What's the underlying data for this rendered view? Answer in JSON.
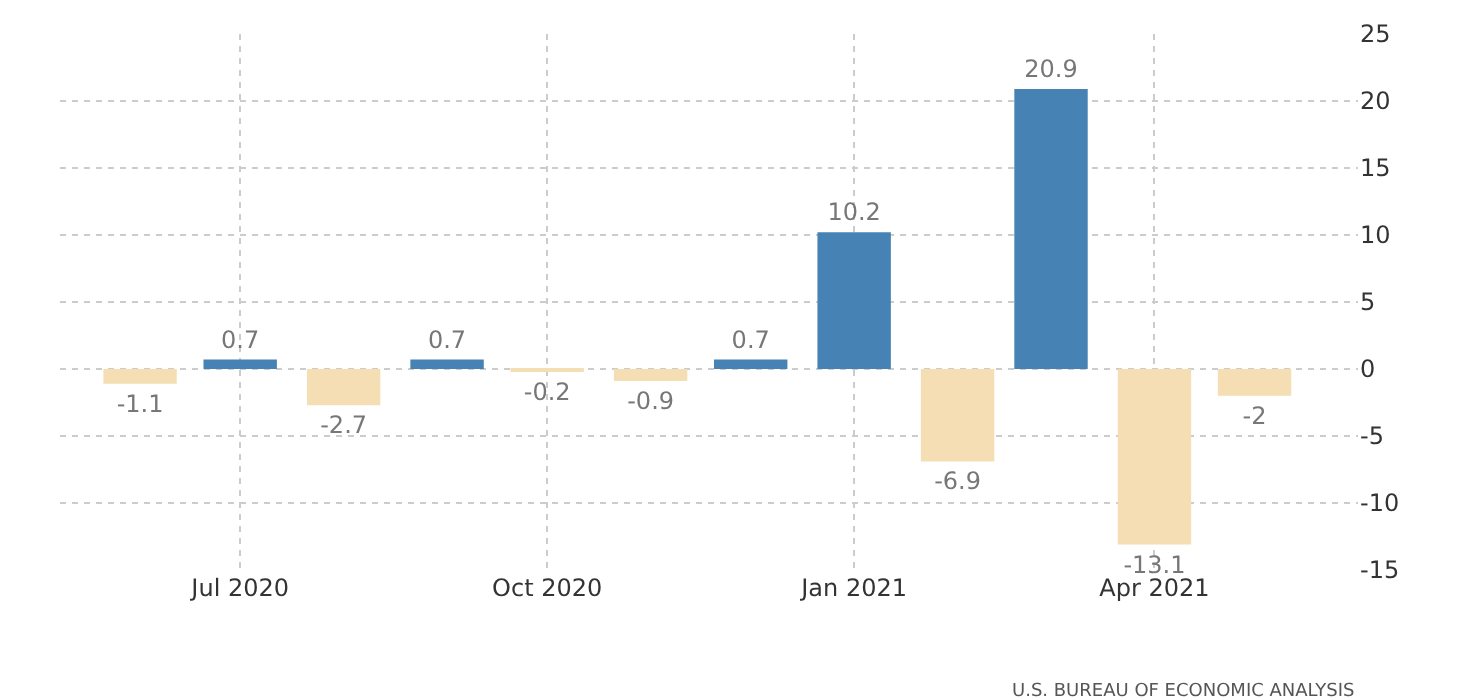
{
  "chart_data": {
    "type": "bar",
    "x": [
      "2020-06",
      "2020-07",
      "2020-08",
      "2020-09",
      "2020-10",
      "2020-11",
      "2020-12",
      "2021-01",
      "2021-02",
      "2021-03",
      "2021-04",
      "2021-05"
    ],
    "values": [
      -1.1,
      0.7,
      -2.7,
      0.7,
      -0.2,
      -0.9,
      0.7,
      10.2,
      -6.9,
      20.9,
      -13.1,
      -2
    ],
    "colors": [
      "#f5deb3",
      "#4682b4",
      "#f5deb3",
      "#4682b4",
      "#f5deb3",
      "#f5deb3",
      "#4682b4",
      "#4682b4",
      "#f5deb3",
      "#4682b4",
      "#f5deb3",
      "#f5deb3"
    ],
    "data_labels": true,
    "xlim": [
      "2020-05-08",
      "2021-06-01"
    ],
    "xticks": [
      {
        "value": "2020-07",
        "label": "Jul 2020"
      },
      {
        "value": "2020-10",
        "label": "Oct 2020"
      },
      {
        "value": "2021-01",
        "label": "Jan 2021"
      },
      {
        "value": "2021-04",
        "label": "Apr 2021"
      }
    ],
    "ylim": [
      -15,
      25
    ],
    "yticks": [
      -15,
      -10,
      -5,
      0,
      5,
      10,
      15,
      20,
      25
    ],
    "grid": true,
    "annotations": [
      "U.S. BUREAU OF ECONOMIC ANALYSIS"
    ]
  }
}
